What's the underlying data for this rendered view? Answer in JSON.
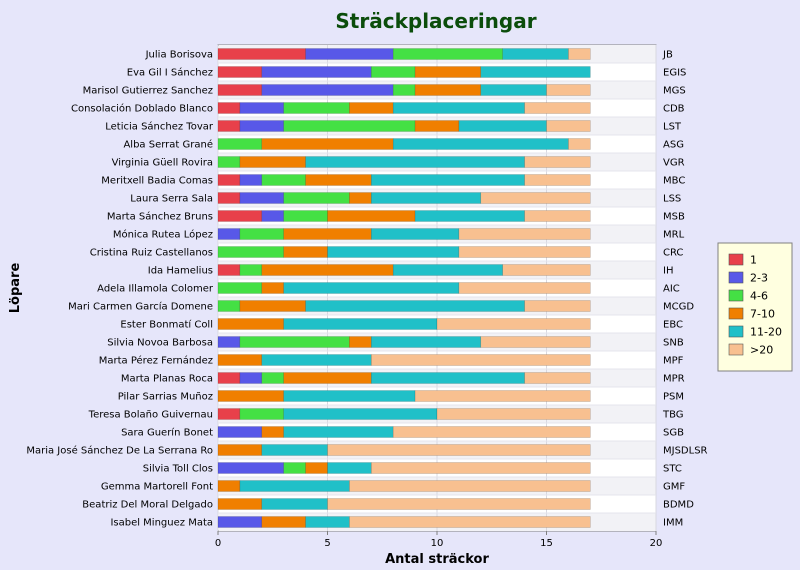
{
  "chart_data": {
    "type": "bar",
    "orientation": "horizontal",
    "stacked": true,
    "title": "Sträckplaceringar",
    "xlabel": "Antal sträckor",
    "ylabel": "Löpare",
    "xlim": [
      0,
      20
    ],
    "xticks": [
      0,
      5,
      10,
      15,
      20
    ],
    "grid": true,
    "legend_position": "right",
    "categories": [
      "Julia Borisova",
      "Eva Gil I Sánchez",
      "Marisol Gutierrez Sanchez",
      "Consolación Doblado Blanco",
      "Leticia Sánchez Tovar",
      "Alba Serrat Grané",
      "Virginia Güell Rovira",
      "Meritxell Badia Comas",
      "Laura Serra Sala",
      "Marta Sánchez Bruns",
      "Mónica Rutea López",
      "Cristina Ruiz Castellanos",
      "Ida Hamelius",
      "Adela Illamola Colomer",
      "Mari Carmen García Domene",
      "Ester Bonmatí Coll",
      "Silvia Novoa Barbosa",
      "Marta Pérez Fernández",
      "Marta Planas Roca",
      "Pilar Sarrias Muñoz",
      "Teresa Bolaño Guivernau",
      "Sara Guerín Bonet",
      "Maria José Sánchez De La Serrana Ro",
      "Silvia Toll Clos",
      "Gemma Martorell Font",
      "Beatriz Del Moral Delgado",
      "Isabel Minguez Mata"
    ],
    "right_labels": [
      "JB",
      "EGIS",
      "MGS",
      "CDB",
      "LST",
      "ASG",
      "VGR",
      "MBC",
      "LSS",
      "MSB",
      "MRL",
      "CRC",
      "IH",
      "AIC",
      "MCGD",
      "EBC",
      "SNB",
      "MPF",
      "MPR",
      "PSM",
      "TBG",
      "SGB",
      "MJSDLSR",
      "STC",
      "GMF",
      "BDMD",
      "IMM"
    ],
    "series": [
      {
        "name": "1",
        "color": "#e8404a",
        "values": [
          4,
          2,
          2,
          1,
          1,
          0,
          0,
          1,
          1,
          2,
          0,
          0,
          1,
          0,
          0,
          0,
          0,
          0,
          1,
          0,
          1,
          0,
          0,
          0,
          0,
          0,
          0
        ]
      },
      {
        "name": "2-3",
        "color": "#5858e8",
        "values": [
          4,
          5,
          6,
          2,
          2,
          0,
          0,
          1,
          2,
          1,
          1,
          0,
          0,
          0,
          0,
          0,
          1,
          0,
          1,
          0,
          0,
          2,
          0,
          3,
          0,
          0,
          2
        ]
      },
      {
        "name": "4-6",
        "color": "#44e044",
        "values": [
          5,
          2,
          1,
          3,
          6,
          2,
          1,
          2,
          3,
          2,
          2,
          3,
          1,
          2,
          1,
          0,
          5,
          0,
          1,
          0,
          2,
          0,
          0,
          1,
          0,
          0,
          0
        ]
      },
      {
        "name": "7-10",
        "color": "#f07f00",
        "values": [
          0,
          3,
          3,
          2,
          2,
          6,
          3,
          3,
          1,
          4,
          4,
          2,
          6,
          1,
          3,
          3,
          1,
          2,
          4,
          3,
          0,
          1,
          2,
          1,
          1,
          2,
          2
        ]
      },
      {
        "name": "11-20",
        "color": "#20c0c8",
        "values": [
          3,
          5,
          3,
          6,
          4,
          8,
          10,
          7,
          5,
          5,
          4,
          6,
          5,
          8,
          10,
          7,
          5,
          5,
          7,
          6,
          7,
          5,
          3,
          2,
          5,
          3,
          2
        ]
      },
      {
        "name": ">20",
        "color": "#f8c090",
        "values": [
          1,
          0,
          2,
          3,
          2,
          1,
          3,
          3,
          5,
          3,
          6,
          6,
          4,
          6,
          3,
          7,
          5,
          10,
          3,
          8,
          7,
          9,
          12,
          10,
          11,
          12,
          11
        ]
      }
    ]
  }
}
